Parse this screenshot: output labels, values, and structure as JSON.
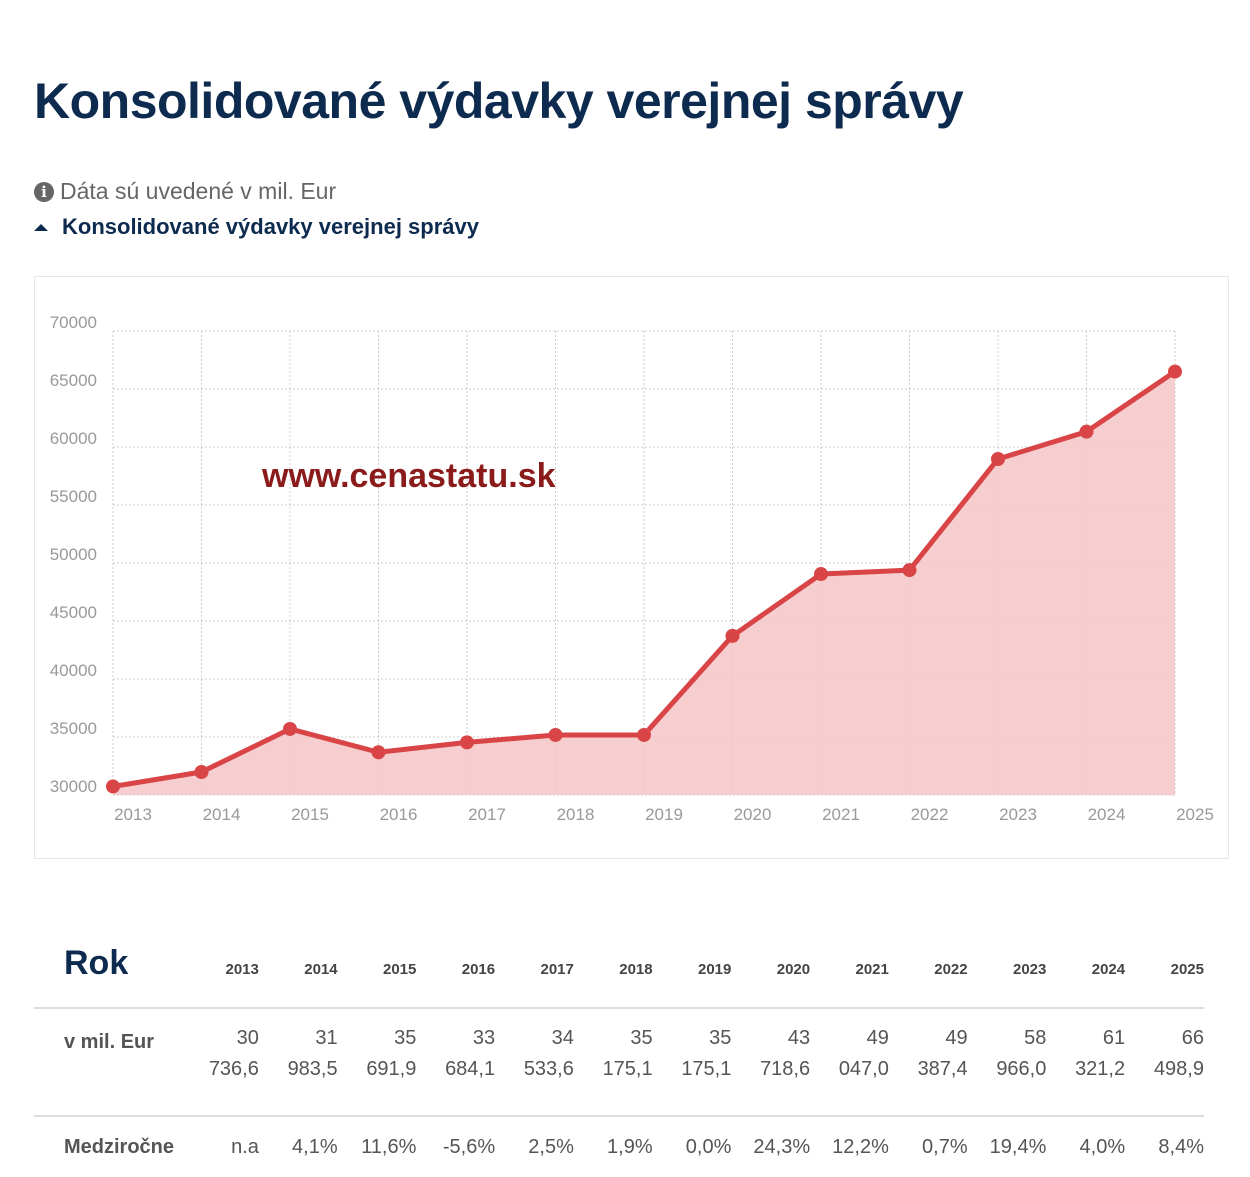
{
  "title": "Konsolidované výdavky verejnej správy",
  "note": "Dáta sú uvedené v mil. Eur",
  "icons": {
    "note": "info-circle-icon",
    "legend": "triangle-up-icon"
  },
  "colors": {
    "title": "#0d2a4f",
    "line": "#d94446",
    "area": "#f4c6c7",
    "watermark": "#8b1a1a"
  },
  "chart_data": {
    "type": "area",
    "title": "",
    "legend": [
      "Konsolidované výdavky verejnej správy"
    ],
    "legend_placement": "top-left",
    "watermark": "www.cenastatu.sk",
    "xlabel": "",
    "ylabel": "",
    "ylim": [
      30000,
      70000
    ],
    "yticks": [
      30000,
      35000,
      40000,
      45000,
      50000,
      55000,
      60000,
      65000,
      70000
    ],
    "grid": true,
    "x": [
      "2013",
      "2014",
      "2015",
      "2016",
      "2017",
      "2018",
      "2019",
      "2020",
      "2021",
      "2022",
      "2023",
      "2024",
      "2025"
    ],
    "series": [
      {
        "name": "Konsolidované výdavky verejnej správy",
        "values": [
          30736.6,
          31983.5,
          35691.9,
          33684.1,
          34533.6,
          35175.1,
          35175.1,
          43718.6,
          49047.0,
          49387.4,
          58966.0,
          61321.2,
          66498.9
        ]
      }
    ]
  },
  "table": {
    "header_label": "Rok",
    "years": [
      "2013",
      "2014",
      "2015",
      "2016",
      "2017",
      "2018",
      "2019",
      "2020",
      "2021",
      "2022",
      "2023",
      "2024",
      "2025"
    ],
    "rows": [
      {
        "label": "v mil. Eur",
        "cells": [
          [
            "30",
            "736,6"
          ],
          [
            "31",
            "983,5"
          ],
          [
            "35",
            "691,9"
          ],
          [
            "33",
            "684,1"
          ],
          [
            "34",
            "533,6"
          ],
          [
            "35",
            "175,1"
          ],
          [
            "35",
            "175,1"
          ],
          [
            "43",
            "718,6"
          ],
          [
            "49",
            "047,0"
          ],
          [
            "49",
            "387,4"
          ],
          [
            "58",
            "966,0"
          ],
          [
            "61",
            "321,2"
          ],
          [
            "66",
            "498,9"
          ]
        ]
      },
      {
        "label": "Medziročne",
        "cells": [
          "n.a",
          "4,1%",
          "11,6%",
          "-5,6%",
          "2,5%",
          "1,9%",
          "0,0%",
          "24,3%",
          "12,2%",
          "0,7%",
          "19,4%",
          "4,0%",
          "8,4%"
        ]
      }
    ]
  }
}
